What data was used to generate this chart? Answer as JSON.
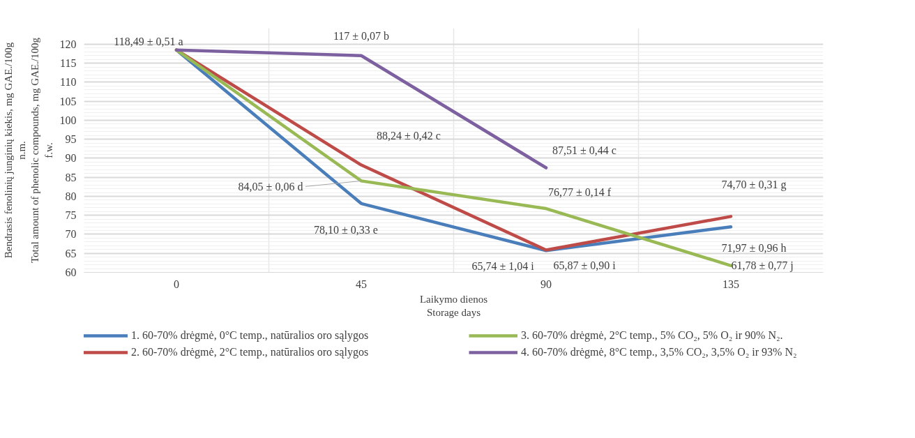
{
  "chart_data": {
    "type": "line",
    "xlabel": "Laikymo dienos\nStorage days",
    "ylabel": "Bendrasis fenolinių junginių kiekis, mg GAE./100g\nn.m.\nTotal amount of phenolic compounds, mg GAE./100g\nf.w.",
    "categories": [
      "0",
      "45",
      "90",
      "135"
    ],
    "ylim": [
      60,
      120
    ],
    "yticks": [
      60,
      65,
      70,
      75,
      80,
      85,
      90,
      95,
      100,
      105,
      110,
      115,
      120
    ],
    "grid": true,
    "legend": "bottom",
    "marker": "none",
    "line_style": "solid",
    "series": [
      {
        "name": "1. 60-70% drėgmė, 0°C temp., natūralios oro sąlygos",
        "color": "#4a7ebb",
        "values": [
          118.49,
          78.1,
          65.74,
          71.97
        ],
        "value_labels": [
          null,
          "78,10 ± 0,33 e",
          "65,74 ± 1,04 i",
          "71,97 ± 0,96 h"
        ]
      },
      {
        "name": "2. 60-70% drėgmė, 2°C temp., natūralios oro sąlygos",
        "color": "#be4b48",
        "values": [
          118.49,
          88.24,
          65.87,
          74.7
        ],
        "value_labels": [
          null,
          "88,24 ± 0,42 c",
          "65,87 ± 0,90 i",
          "74,70 ± 0,31 g"
        ]
      },
      {
        "name": "3. 60-70% drėgmė, 2°C temp., 5% CO₂, 5% O₂ ir 90% N₂.",
        "color": "#98b954",
        "values": [
          118.49,
          84.05,
          76.77,
          61.78
        ],
        "value_labels": [
          null,
          "84,05 ± 0,06 d",
          "76,77 ± 0,14 f",
          "61,78 ± 0,77 j"
        ]
      },
      {
        "name": "4. 60-70% drėgmė, 8°C temp., 3,5% CO₂, 3,5% O₂ ir 93% N₂",
        "color": "#7d60a0",
        "values": [
          118.49,
          117,
          87.51,
          null
        ],
        "value_labels": [
          "118,49 ± 0,51 a",
          "117 ± 0,07 b",
          "87,51 ± 0,44 c",
          null
        ]
      }
    ]
  }
}
